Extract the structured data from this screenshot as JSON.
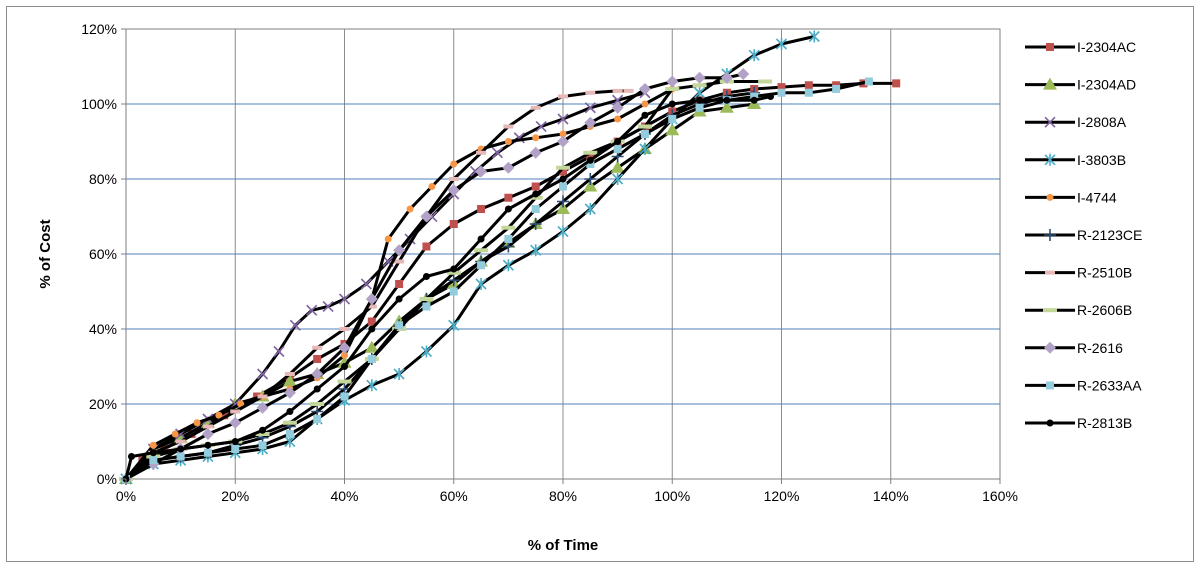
{
  "chart_data": {
    "type": "line",
    "title": "",
    "xlabel": "% of Time",
    "ylabel": "% of Cost",
    "xlim": [
      0,
      160
    ],
    "ylim": [
      0,
      120
    ],
    "x_ticks": [
      "0%",
      "20%",
      "40%",
      "60%",
      "80%",
      "100%",
      "120%",
      "140%",
      "160%"
    ],
    "y_ticks": [
      "0%",
      "20%",
      "40%",
      "60%",
      "80%",
      "100%",
      "120%"
    ],
    "grid": true,
    "legend_position": "right",
    "series": [
      {
        "name": "I-2304AC",
        "color": "#c0504d",
        "marker": "square",
        "x": [
          0,
          3,
          7,
          12,
          18,
          24,
          30,
          35,
          40,
          45,
          50,
          55,
          60,
          65,
          70,
          75,
          80,
          85,
          90,
          95,
          100,
          105,
          110,
          115,
          120,
          125,
          130,
          135,
          141
        ],
        "y": [
          0,
          5,
          8,
          12,
          17,
          22,
          27,
          32,
          36,
          42,
          52,
          62,
          68,
          72,
          75,
          78,
          82,
          86,
          90,
          94,
          98,
          101,
          103,
          104,
          104.5,
          105,
          105,
          105.5,
          105.5
        ]
      },
      {
        "name": "I-2304AD",
        "color": "#9bbb59",
        "marker": "triangle",
        "x": [
          0,
          5,
          10,
          15,
          20,
          25,
          30,
          35,
          40,
          45,
          50,
          55,
          60,
          65,
          70,
          75,
          80,
          85,
          90,
          95,
          100,
          105,
          110,
          115
        ],
        "y": [
          0,
          8,
          11,
          15,
          20,
          22,
          26,
          28,
          31,
          35,
          42,
          48,
          52,
          58,
          63,
          68,
          72,
          78,
          83,
          88,
          93,
          98,
          99,
          100
        ]
      },
      {
        "name": "I-2808A",
        "color": "#8064a2",
        "marker": "x",
        "x": [
          0,
          5,
          10,
          15,
          20,
          25,
          28,
          31,
          34,
          37,
          40,
          44,
          48,
          52,
          56,
          60,
          64,
          68,
          72,
          76,
          80,
          85,
          90,
          95
        ],
        "y": [
          0,
          8,
          12,
          16,
          20,
          28,
          34,
          41,
          45,
          46,
          48,
          52,
          58,
          64,
          70,
          76,
          82,
          87,
          91,
          94,
          96,
          99,
          101,
          103
        ]
      },
      {
        "name": "I-3803B",
        "color": "#4bacc6",
        "marker": "star",
        "x": [
          0,
          5,
          10,
          15,
          20,
          25,
          30,
          35,
          40,
          45,
          50,
          55,
          60,
          65,
          70,
          75,
          80,
          85,
          90,
          95,
          100,
          105,
          110,
          115,
          120,
          126
        ],
        "y": [
          0,
          4,
          5,
          6,
          7,
          8,
          10,
          16,
          21,
          25,
          28,
          34,
          41,
          52,
          57,
          61,
          66,
          72,
          80,
          88,
          96,
          103,
          108,
          113,
          116,
          118
        ]
      },
      {
        "name": "I-4744",
        "color": "#f79646",
        "marker": "circle",
        "x": [
          0,
          5,
          9,
          13,
          17,
          21,
          25,
          30,
          35,
          40,
          45,
          48,
          52,
          56,
          60,
          65,
          70,
          75,
          80,
          85,
          90,
          95,
          100
        ],
        "y": [
          0,
          9,
          12,
          15,
          17,
          20,
          22,
          24,
          27,
          33,
          48,
          64,
          72,
          78,
          84,
          88,
          90,
          91,
          92,
          94,
          96,
          100,
          104
        ]
      },
      {
        "name": "R-2123CE",
        "color": "#2c4d75",
        "marker": "plus",
        "x": [
          0,
          5,
          10,
          15,
          20,
          25,
          30,
          35,
          40,
          45,
          50,
          55,
          60,
          65,
          70,
          75,
          80,
          85,
          90,
          95,
          100,
          105,
          110,
          115
        ],
        "y": [
          0,
          5,
          6,
          7,
          9,
          11,
          14,
          18,
          24,
          32,
          41,
          48,
          53,
          58,
          62,
          68,
          74,
          80,
          86,
          92,
          97,
          100,
          102,
          103
        ]
      },
      {
        "name": "R-2510B",
        "color": "#e6b9b8",
        "marker": "dash",
        "x": [
          0,
          5,
          10,
          15,
          20,
          25,
          30,
          35,
          40,
          45,
          50,
          55,
          60,
          65,
          70,
          75,
          80,
          85,
          90,
          92
        ],
        "y": [
          0,
          7,
          10,
          14,
          18,
          22,
          28,
          35,
          40,
          46,
          58,
          70,
          80,
          87,
          94,
          99,
          102,
          103,
          103.5,
          103.5
        ]
      },
      {
        "name": "R-2606B",
        "color": "#c4d79b",
        "marker": "longdash",
        "x": [
          0,
          5,
          10,
          15,
          20,
          25,
          30,
          35,
          40,
          45,
          50,
          55,
          60,
          65,
          70,
          75,
          80,
          85,
          90,
          95,
          100,
          105,
          110,
          117
        ],
        "y": [
          0,
          6,
          8,
          9,
          10,
          12,
          15,
          20,
          26,
          32,
          40,
          48,
          55,
          61,
          67,
          75,
          83,
          87,
          90,
          94,
          104,
          105,
          106,
          106
        ]
      },
      {
        "name": "R-2616",
        "color": "#b3a2c7",
        "marker": "diamond",
        "x": [
          0,
          5,
          10,
          15,
          20,
          25,
          30,
          35,
          40,
          45,
          50,
          55,
          60,
          65,
          70,
          75,
          80,
          85,
          90,
          95,
          100,
          105,
          110,
          113
        ],
        "y": [
          0,
          4,
          8,
          12,
          15,
          19,
          23,
          28,
          35,
          48,
          61,
          70,
          77,
          82,
          83,
          87,
          90,
          95,
          99,
          104,
          106,
          107,
          107,
          108
        ]
      },
      {
        "name": "R-2633AA",
        "color": "#93cddd",
        "marker": "square",
        "x": [
          0,
          5,
          10,
          15,
          20,
          25,
          30,
          35,
          40,
          45,
          50,
          55,
          60,
          65,
          70,
          75,
          80,
          85,
          90,
          95,
          100,
          105,
          110,
          115,
          120,
          125,
          130,
          136
        ],
        "y": [
          0,
          5,
          6,
          7,
          8,
          9,
          12,
          16,
          22,
          32,
          41,
          46,
          50,
          57,
          64,
          72,
          78,
          84,
          88,
          92,
          96,
          99,
          101,
          102,
          103,
          103,
          104,
          106
        ]
      },
      {
        "name": "R-2813B",
        "color": "#000000",
        "marker": "circle",
        "x": [
          0,
          1,
          5,
          10,
          15,
          20,
          25,
          30,
          35,
          40,
          45,
          50,
          55,
          60,
          65,
          70,
          75,
          80,
          85,
          90,
          95,
          100,
          105,
          110,
          115,
          118
        ],
        "y": [
          0,
          6,
          7,
          8,
          9,
          10,
          13,
          18,
          24,
          30,
          40,
          48,
          54,
          56,
          64,
          72,
          76,
          80,
          85,
          90,
          97,
          100,
          101,
          101,
          101,
          102
        ]
      }
    ]
  }
}
